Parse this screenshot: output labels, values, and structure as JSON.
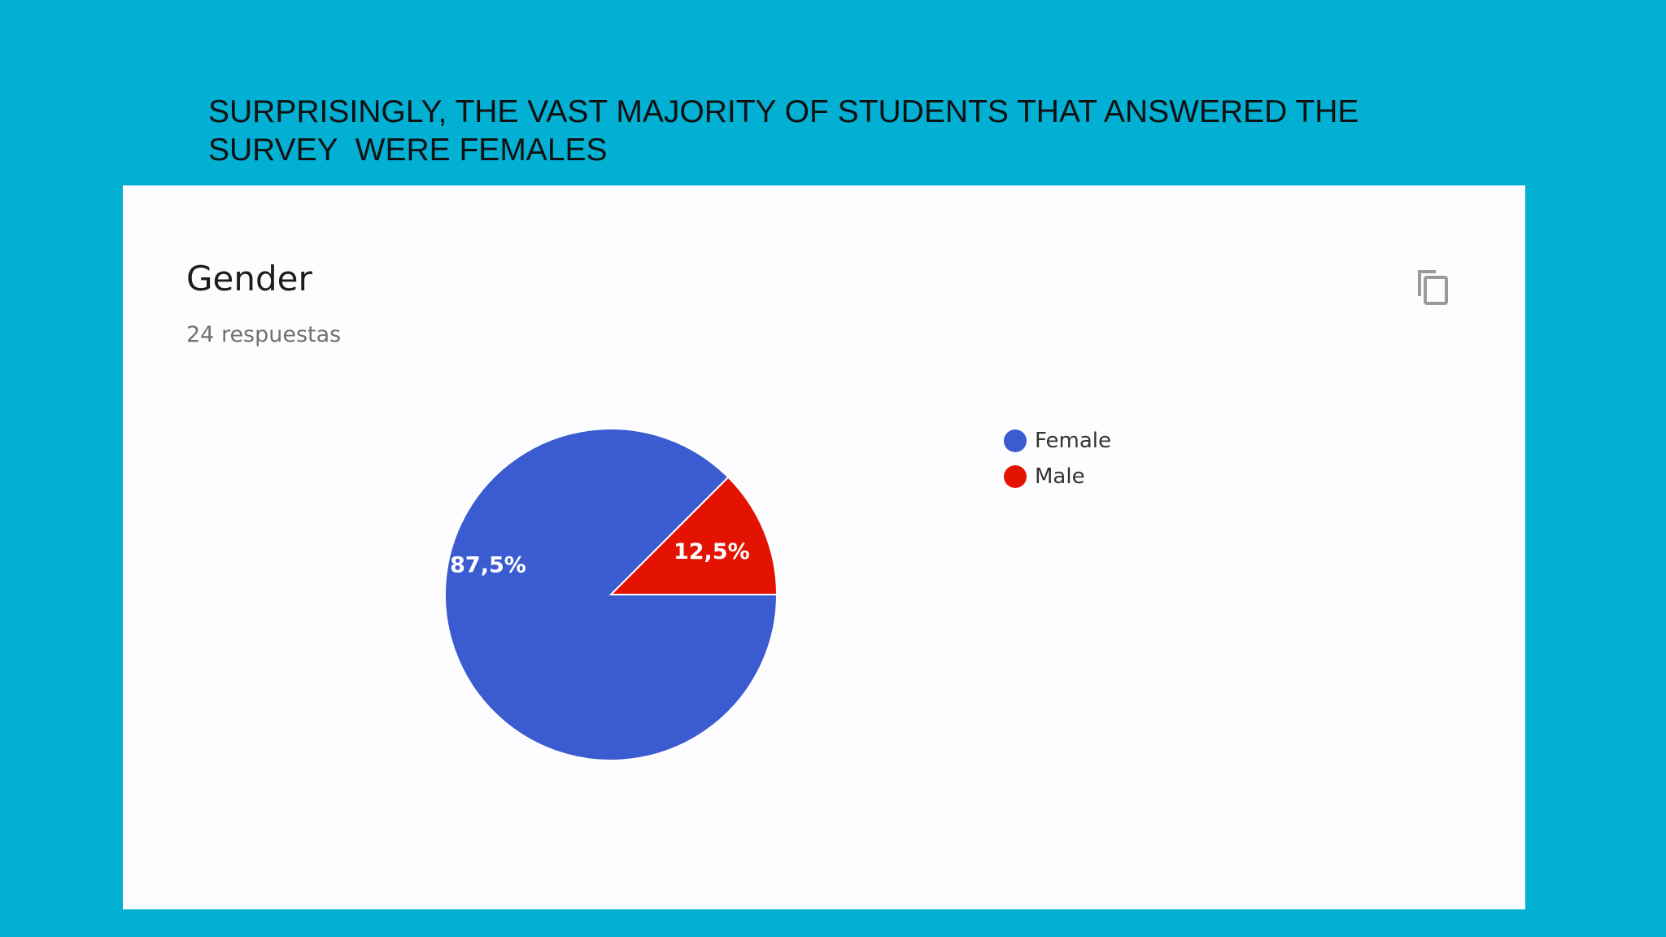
{
  "headline": {
    "line1": "SURPRISINGLY, THE VAST MAJORITY OF STUDENTS THAT ANSWERED THE",
    "line2": "SURVEY  WERE FEMALES"
  },
  "card": {
    "title": "Gender",
    "response_count": "24 respuestas",
    "copy_icon": "copy-icon"
  },
  "chart_data": {
    "type": "pie",
    "title": "Gender",
    "categories": [
      "Female",
      "Male"
    ],
    "values": [
      87.5,
      12.5
    ],
    "labels": [
      "87,5%",
      "12,5%"
    ],
    "colors": [
      "#3b5bd0",
      "#e31201"
    ],
    "legend_placement": "right"
  },
  "colors": {
    "background": "#02b0d4",
    "card": "#fdfdff"
  }
}
